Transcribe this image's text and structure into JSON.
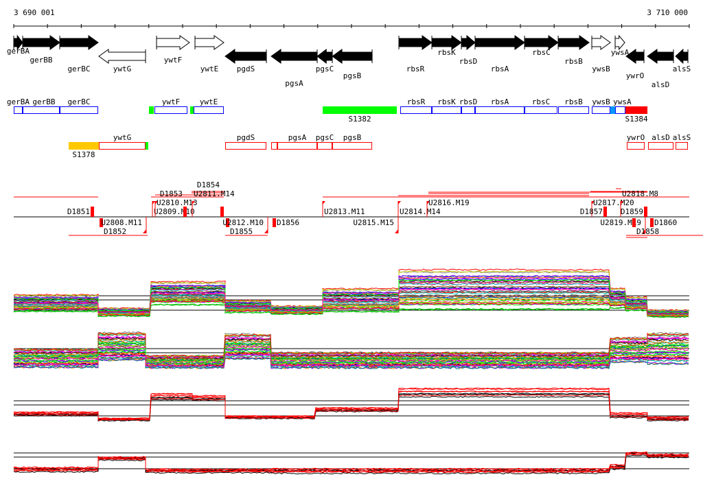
{
  "ruler": {
    "start_label": "3 690 001",
    "end_label": "3 710 000",
    "start_bp": 3690001,
    "end_bp": 3710000,
    "tick_step_bp": 1000
  },
  "genes": [
    {
      "name": "gerBA",
      "start": 3690001,
      "end": 3690265,
      "strand": "+",
      "filled": true
    },
    {
      "name": "gerBB",
      "start": 3690265,
      "end": 3691363,
      "strand": "+",
      "filled": true
    },
    {
      "name": "gerBC",
      "start": 3691363,
      "end": 3692501,
      "strand": "+",
      "filled": true
    },
    {
      "name": "ywtG",
      "start": 3692521,
      "end": 3693903,
      "strand": "-",
      "filled": false
    },
    {
      "name": "ywtF",
      "start": 3694229,
      "end": 3695204,
      "strand": "+",
      "filled": false
    },
    {
      "name": "ywtE",
      "start": 3695367,
      "end": 3696220,
      "strand": "+",
      "filled": false
    },
    {
      "name": "pgdS",
      "start": 3696261,
      "end": 3697481,
      "strand": "-",
      "filled": true
    },
    {
      "name": "pgsA",
      "start": 3697623,
      "end": 3698985,
      "strand": "-",
      "filled": true
    },
    {
      "name": "pgsC",
      "start": 3698985,
      "end": 3699432,
      "strand": "-",
      "filled": true
    },
    {
      "name": "pgsB",
      "start": 3699432,
      "end": 3700611,
      "strand": "-",
      "filled": true
    },
    {
      "name": "rbsR",
      "start": 3701403,
      "end": 3702379,
      "strand": "+",
      "filled": true
    },
    {
      "name": "rbsK",
      "start": 3702379,
      "end": 3703253,
      "strand": "+",
      "filled": true
    },
    {
      "name": "rbsD",
      "start": 3703253,
      "end": 3703659,
      "strand": "+",
      "filled": true
    },
    {
      "name": "rbsA",
      "start": 3703659,
      "end": 3705123,
      "strand": "+",
      "filled": true
    },
    {
      "name": "rbsC",
      "start": 3705123,
      "end": 3706119,
      "strand": "+",
      "filled": true
    },
    {
      "name": "rbsB",
      "start": 3706119,
      "end": 3707034,
      "strand": "+",
      "filled": true
    },
    {
      "name": "ywsB",
      "start": 3707115,
      "end": 3707664,
      "strand": "+",
      "filled": false
    },
    {
      "name": "ywsA",
      "start": 3707806,
      "end": 3708091,
      "strand": "+",
      "filled": false
    },
    {
      "name": "ywrO",
      "start": 3708131,
      "end": 3708659,
      "strand": "-",
      "filled": true
    },
    {
      "name": "alsD",
      "start": 3708761,
      "end": 3709533,
      "strand": "-",
      "filled": true
    },
    {
      "name": "alsS",
      "start": 3709594,
      "end": 3709960,
      "strand": "-",
      "filled": true
    }
  ],
  "plus_track": [
    {
      "label": "gerBA",
      "start": 3690001,
      "end": 3690265,
      "kind": "gene"
    },
    {
      "label": "gerBB",
      "start": 3690265,
      "end": 3691363,
      "kind": "gene"
    },
    {
      "label": "gerBC",
      "start": 3691363,
      "end": 3692501,
      "kind": "gene"
    },
    {
      "label": "",
      "start": 3694005,
      "end": 3694148,
      "kind": "green"
    },
    {
      "label": "ywtF",
      "start": 3694168,
      "end": 3695143,
      "kind": "gene"
    },
    {
      "label": "",
      "start": 3695224,
      "end": 3695326,
      "kind": "green"
    },
    {
      "label": "ywtE",
      "start": 3695326,
      "end": 3696220,
      "kind": "gene"
    },
    {
      "label": "S1382",
      "start": 3699148,
      "end": 3701343,
      "kind": "green"
    },
    {
      "label": "rbsR",
      "start": 3701443,
      "end": 3702379,
      "kind": "gene"
    },
    {
      "label": "rbsK",
      "start": 3702379,
      "end": 3703253,
      "kind": "gene"
    },
    {
      "label": "rbsD",
      "start": 3703253,
      "end": 3703659,
      "kind": "gene"
    },
    {
      "label": "rbsA",
      "start": 3703659,
      "end": 3705123,
      "kind": "gene"
    },
    {
      "label": "rbsC",
      "start": 3705123,
      "end": 3706099,
      "kind": "gene"
    },
    {
      "label": "rbsB",
      "start": 3706119,
      "end": 3707034,
      "kind": "gene"
    },
    {
      "label": "ywsB",
      "start": 3707115,
      "end": 3707664,
      "kind": "gene"
    },
    {
      "label": "",
      "start": 3707664,
      "end": 3707806,
      "kind": "blue"
    },
    {
      "label": "ywsA",
      "start": 3707806,
      "end": 3708111,
      "kind": "gene"
    },
    {
      "label": "S1384",
      "start": 3708111,
      "end": 3708761,
      "kind": "red"
    }
  ],
  "minus_track": [
    {
      "label": "S1378",
      "start": 3691627,
      "end": 3692521,
      "kind": "yellow"
    },
    {
      "label": "ywtG",
      "start": 3692521,
      "end": 3693903,
      "kind": "gene"
    },
    {
      "label": "",
      "start": 3693903,
      "end": 3693984,
      "kind": "green"
    },
    {
      "label": "pgdS",
      "start": 3696261,
      "end": 3697481,
      "kind": "gene"
    },
    {
      "label": "",
      "start": 3697623,
      "end": 3697806,
      "kind": "gene"
    },
    {
      "label": "pgsA",
      "start": 3697806,
      "end": 3698985,
      "kind": "gene"
    },
    {
      "label": "pgsC",
      "start": 3698985,
      "end": 3699432,
      "kind": "gene"
    },
    {
      "label": "pgsB",
      "start": 3699432,
      "end": 3700611,
      "kind": "gene"
    },
    {
      "label": "ywrO",
      "start": 3708151,
      "end": 3708679,
      "kind": "gene"
    },
    {
      "label": "alsD",
      "start": 3708781,
      "end": 3709533,
      "kind": "gene"
    },
    {
      "label": "alsS",
      "start": 3709594,
      "end": 3709960,
      "kind": "gene"
    }
  ],
  "segments": {
    "up": [
      "D1851",
      "U2809.M10",
      "U2810.M13",
      "D1853",
      "U2811.M14",
      "D1854",
      "U2813.M11",
      "U2814.M14",
      "U2816.M19",
      "U2817.M20",
      "D1857",
      "U2818.M8",
      "D1859"
    ],
    "down": [
      "D1852",
      "U2808.M11",
      "D1855",
      "U2812.M10",
      "D1856",
      "U2815.M15",
      "U2819.M19",
      "D1858",
      "D1860"
    ]
  },
  "colors": {
    "gene_plus": "#0000ff",
    "gene_minus": "#ff0000",
    "green": "#00ff00",
    "red": "#ff0000",
    "yellow": "#ffc800",
    "blue": "#0096ff"
  }
}
